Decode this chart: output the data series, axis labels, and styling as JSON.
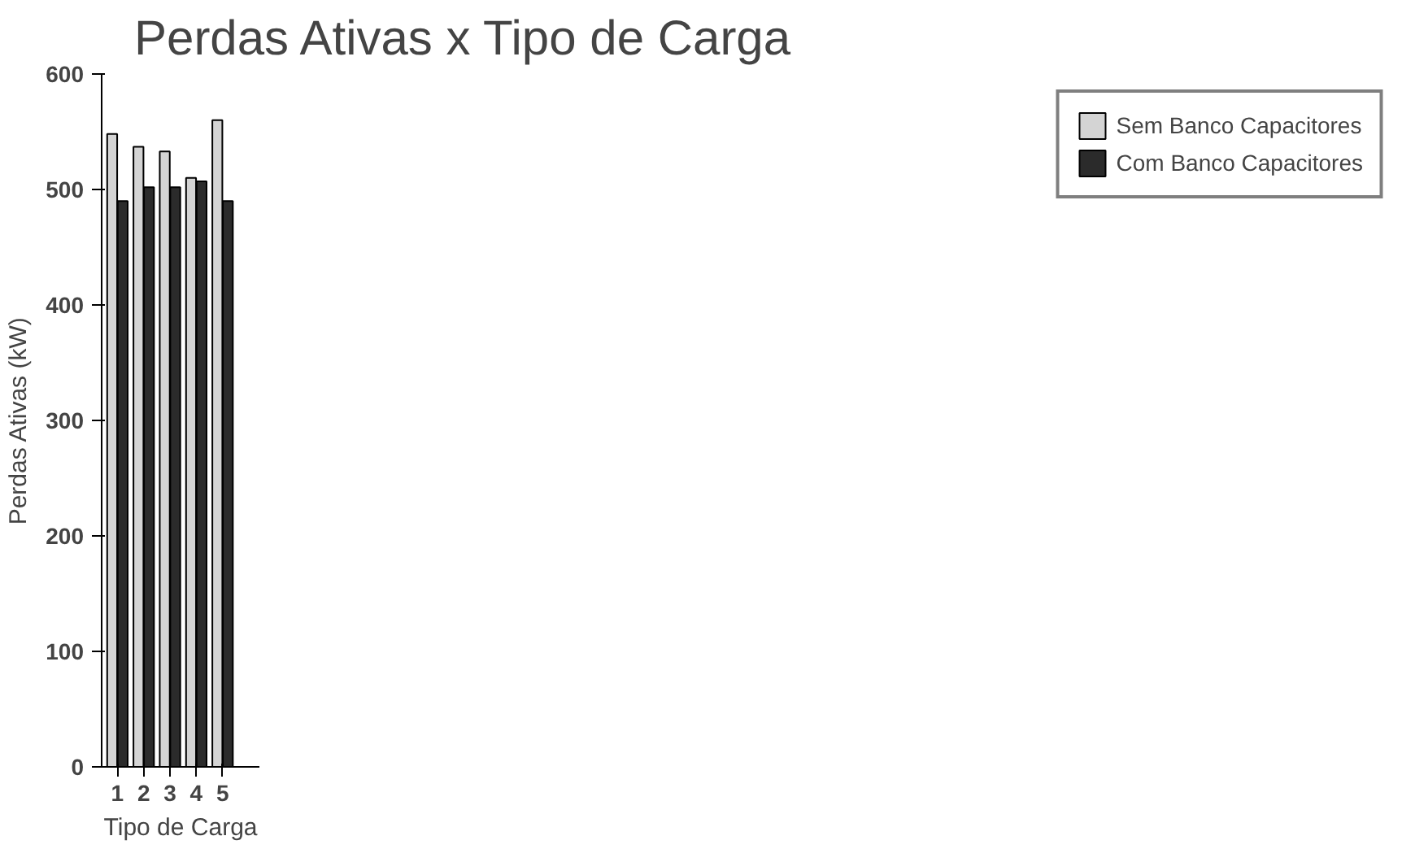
{
  "chart_data": {
    "type": "bar",
    "title": "Perdas Ativas x Tipo de Carga",
    "xlabel": "Tipo de Carga",
    "ylabel": "Perdas Ativas (kW)",
    "categories": [
      "1",
      "2",
      "3",
      "4",
      "5"
    ],
    "series": [
      {
        "name": "Sem Banco Capacitores",
        "color": "#d4d4d4",
        "values": [
          548,
          537,
          533,
          510,
          560
        ]
      },
      {
        "name": "Com Banco Capacitores",
        "color": "#2b2b2b",
        "values": [
          490,
          502,
          502,
          507,
          490
        ]
      }
    ],
    "ylim": [
      0,
      600
    ],
    "yticks": [
      0,
      100,
      200,
      300,
      400,
      500,
      600
    ],
    "grid": false,
    "legend": "right"
  }
}
